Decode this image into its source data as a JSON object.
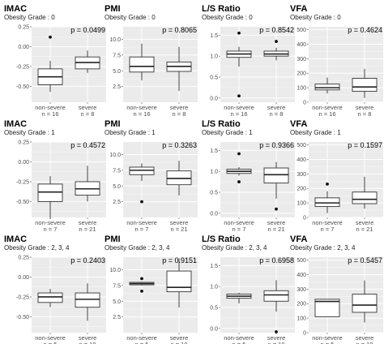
{
  "chart_data": [
    {
      "type": "box",
      "title": "IMAC",
      "subtitle": "Obesity Grade : 0",
      "pvalue": "p = 0.0499",
      "ylim": [
        -0.7,
        0.25
      ],
      "yticks": [
        "0.25",
        "0.00",
        "-0.25",
        "-0.50"
      ],
      "ytick_values": [
        0.25,
        0,
        -0.25,
        -0.5
      ],
      "groups": [
        {
          "label": "non-severe",
          "n": "n = 16",
          "min": -0.57,
          "q1": -0.48,
          "median": -0.38,
          "q3": -0.28,
          "max": -0.18,
          "outliers": [
            0.12
          ]
        },
        {
          "label": "severe",
          "n": "n = 8",
          "min": -0.33,
          "q1": -0.28,
          "median": -0.2,
          "q3": -0.13,
          "max": -0.05,
          "outliers": []
        }
      ]
    },
    {
      "type": "box",
      "title": "PMI",
      "subtitle": "Obesity Grade : 0",
      "pvalue": "p = 0.8065",
      "ylim": [
        0,
        12
      ],
      "yticks": [
        "10.0",
        "7.5",
        "5.0",
        "2.5"
      ],
      "ytick_values": [
        10,
        7.5,
        5,
        2.5
      ],
      "groups": [
        {
          "label": "non-severe",
          "n": "n = 16",
          "min": 3.5,
          "q1": 4.8,
          "median": 5.7,
          "q3": 7.2,
          "max": 9.3,
          "outliers": []
        },
        {
          "label": "severe",
          "n": "n = 8",
          "min": 1.8,
          "q1": 4.9,
          "median": 5.7,
          "q3": 6.4,
          "max": 8.8,
          "outliers": []
        }
      ]
    },
    {
      "type": "box",
      "title": "L/S Ratio",
      "subtitle": "Obesity Grade : 0",
      "pvalue": "p = 0.8542",
      "ylim": [
        -0.1,
        1.7
      ],
      "yticks": [
        "1.5",
        "1.0",
        "0.5",
        "0.0"
      ],
      "ytick_values": [
        1.5,
        1,
        0.5,
        0
      ],
      "groups": [
        {
          "label": "non-severe",
          "n": "n = 16",
          "min": 0.75,
          "q1": 0.97,
          "median": 1.05,
          "q3": 1.12,
          "max": 1.22,
          "outliers": [
            1.55,
            0.05
          ]
        },
        {
          "label": "severe",
          "n": "n = 8",
          "min": 0.9,
          "q1": 1.0,
          "median": 1.05,
          "q3": 1.12,
          "max": 1.2,
          "outliers": [
            1.35
          ]
        }
      ]
    },
    {
      "type": "box",
      "title": "VFA",
      "subtitle": "Obesity Grade : 0",
      "pvalue": "p = 0.4624",
      "ylim": [
        0,
        520
      ],
      "yticks": [
        "500",
        "400",
        "300",
        "200",
        "100",
        "0"
      ],
      "ytick_values": [
        500,
        400,
        300,
        200,
        100,
        0
      ],
      "groups": [
        {
          "label": "non-severe",
          "n": "n = 16",
          "min": 60,
          "q1": 85,
          "median": 100,
          "q3": 125,
          "max": 170,
          "outliers": []
        },
        {
          "label": "severe",
          "n": "n = 8",
          "min": 30,
          "q1": 75,
          "median": 105,
          "q3": 165,
          "max": 230,
          "outliers": []
        }
      ]
    },
    {
      "type": "box",
      "title": "IMAC",
      "subtitle": "Obesity Grade : 1",
      "pvalue": "p = 0.4572",
      "ylim": [
        -0.7,
        0.25
      ],
      "yticks": [
        "0.25",
        "0.00",
        "-0.25",
        "-0.50",
        "-0.75"
      ],
      "ytick_values": [
        0.25,
        0,
        -0.25,
        -0.5,
        -0.75
      ],
      "groups": [
        {
          "label": "non-severe",
          "n": "n = 7",
          "min": -0.72,
          "q1": -0.5,
          "median": -0.38,
          "q3": -0.28,
          "max": -0.18,
          "outliers": []
        },
        {
          "label": "severe",
          "n": "n = 21",
          "min": -0.5,
          "q1": -0.42,
          "median": -0.34,
          "q3": -0.25,
          "max": -0.05,
          "outliers": []
        }
      ]
    },
    {
      "type": "box",
      "title": "PMI",
      "subtitle": "Obesity Grade : 1",
      "pvalue": "p = 0.3263",
      "ylim": [
        0,
        12
      ],
      "yticks": [
        "10.0",
        "7.5",
        "5.0",
        "2.5"
      ],
      "ytick_values": [
        10,
        7.5,
        5,
        2.5
      ],
      "groups": [
        {
          "label": "non-severe",
          "n": "n = 7",
          "min": 5.8,
          "q1": 6.8,
          "median": 7.5,
          "q3": 8.0,
          "max": 8.6,
          "outliers": [
            2.5
          ]
        },
        {
          "label": "severe",
          "n": "n = 21",
          "min": 3.5,
          "q1": 5.2,
          "median": 6.2,
          "q3": 7.4,
          "max": 9.0,
          "outliers": []
        }
      ]
    },
    {
      "type": "box",
      "title": "L/S Ratio",
      "subtitle": "Obesity Grade : 1",
      "pvalue": "p = 0.9366",
      "ylim": [
        -0.1,
        1.7
      ],
      "yticks": [
        "1.5",
        "1.0",
        "0.5",
        "0.0"
      ],
      "ytick_values": [
        1.5,
        1,
        0.5,
        0
      ],
      "groups": [
        {
          "label": "non-severe",
          "n": "n = 7",
          "min": 0.9,
          "q1": 0.95,
          "median": 1.0,
          "q3": 1.05,
          "max": 1.1,
          "outliers": [
            1.42,
            0.75
          ]
        },
        {
          "label": "severe",
          "n": "n = 21",
          "min": 0.35,
          "q1": 0.72,
          "median": 0.92,
          "q3": 1.08,
          "max": 1.22,
          "outliers": [
            0.1
          ]
        }
      ]
    },
    {
      "type": "box",
      "title": "VFA",
      "subtitle": "Obesity Grade : 1",
      "pvalue": "p = 0.1597",
      "ylim": [
        0,
        520
      ],
      "yticks": [
        "500",
        "400",
        "300",
        "200",
        "100",
        "0"
      ],
      "ytick_values": [
        500,
        400,
        300,
        200,
        100,
        0
      ],
      "groups": [
        {
          "label": "non-severe",
          "n": "n = 7",
          "min": 30,
          "q1": 75,
          "median": 100,
          "q3": 135,
          "max": 180,
          "outliers": [
            230
          ]
        },
        {
          "label": "severe",
          "n": "n = 21",
          "min": 60,
          "q1": 95,
          "median": 125,
          "q3": 175,
          "max": 280,
          "outliers": []
        }
      ]
    },
    {
      "type": "box",
      "title": "IMAC",
      "subtitle": "Obesity Grade : 2, 3, 4",
      "pvalue": "p = 0.2403",
      "ylim": [
        -0.7,
        0.25
      ],
      "yticks": [
        "0.25",
        "0.00",
        "-0.25",
        "-0.50",
        "-0.75"
      ],
      "ytick_values": [
        0.25,
        0,
        -0.25,
        -0.5,
        -0.75
      ],
      "groups": [
        {
          "label": "non-severe",
          "n": "n = 5",
          "min": -0.38,
          "q1": -0.32,
          "median": -0.25,
          "q3": -0.2,
          "max": -0.15,
          "outliers": []
        },
        {
          "label": "severe",
          "n": "n = 19",
          "min": -0.55,
          "q1": -0.38,
          "median": -0.28,
          "q3": -0.2,
          "max": -0.08,
          "outliers": []
        }
      ]
    },
    {
      "type": "box",
      "title": "PMI",
      "subtitle": "Obesity Grade : 2, 3, 4",
      "pvalue": "p = 0.9151",
      "ylim": [
        0,
        12
      ],
      "yticks": [
        "10.0",
        "7.5",
        "5.0",
        "2.5"
      ],
      "ytick_values": [
        10,
        7.5,
        5,
        2.5
      ],
      "groups": [
        {
          "label": "non-severe",
          "n": "n = 5",
          "min": 7.5,
          "q1": 7.6,
          "median": 7.8,
          "q3": 8.0,
          "max": 8.1,
          "outliers": [
            8.6,
            6.6
          ]
        },
        {
          "label": "severe",
          "n": "n = 19",
          "min": 4.0,
          "q1": 6.5,
          "median": 7.2,
          "q3": 9.8,
          "max": 11.8,
          "outliers": []
        }
      ]
    },
    {
      "type": "box",
      "title": "L/S Ratio",
      "subtitle": "Obesity Grade : 2, 3, 4",
      "pvalue": "p = 0.6958",
      "ylim": [
        -0.1,
        1.7
      ],
      "yticks": [
        "1.5",
        "1.0",
        "0.5",
        "0.0"
      ],
      "ytick_values": [
        1.5,
        1,
        0.5,
        0
      ],
      "groups": [
        {
          "label": "non-severe",
          "n": "n = 5",
          "min": 0.6,
          "q1": 0.72,
          "median": 0.77,
          "q3": 0.82,
          "max": 0.85,
          "outliers": []
        },
        {
          "label": "severe",
          "n": "n = 19",
          "min": 0.4,
          "q1": 0.65,
          "median": 0.8,
          "q3": 0.9,
          "max": 1.15,
          "outliers": [
            -0.08
          ]
        }
      ]
    },
    {
      "type": "box",
      "title": "VFA",
      "subtitle": "Obesity Grade : 2, 3, 4",
      "pvalue": "p = 0.5457",
      "ylim": [
        0,
        520
      ],
      "yticks": [
        "500",
        "400",
        "300",
        "200",
        "100",
        "0"
      ],
      "ytick_values": [
        500,
        400,
        300,
        200,
        100,
        0
      ],
      "groups": [
        {
          "label": "non-severe",
          "n": "n = 5",
          "min": 110,
          "q1": 110,
          "median": 215,
          "q3": 230,
          "max": 230,
          "outliers": []
        },
        {
          "label": "severe",
          "n": "n = 19",
          "min": 70,
          "q1": 140,
          "median": 190,
          "q3": 265,
          "max": 360,
          "outliers": []
        }
      ]
    }
  ]
}
